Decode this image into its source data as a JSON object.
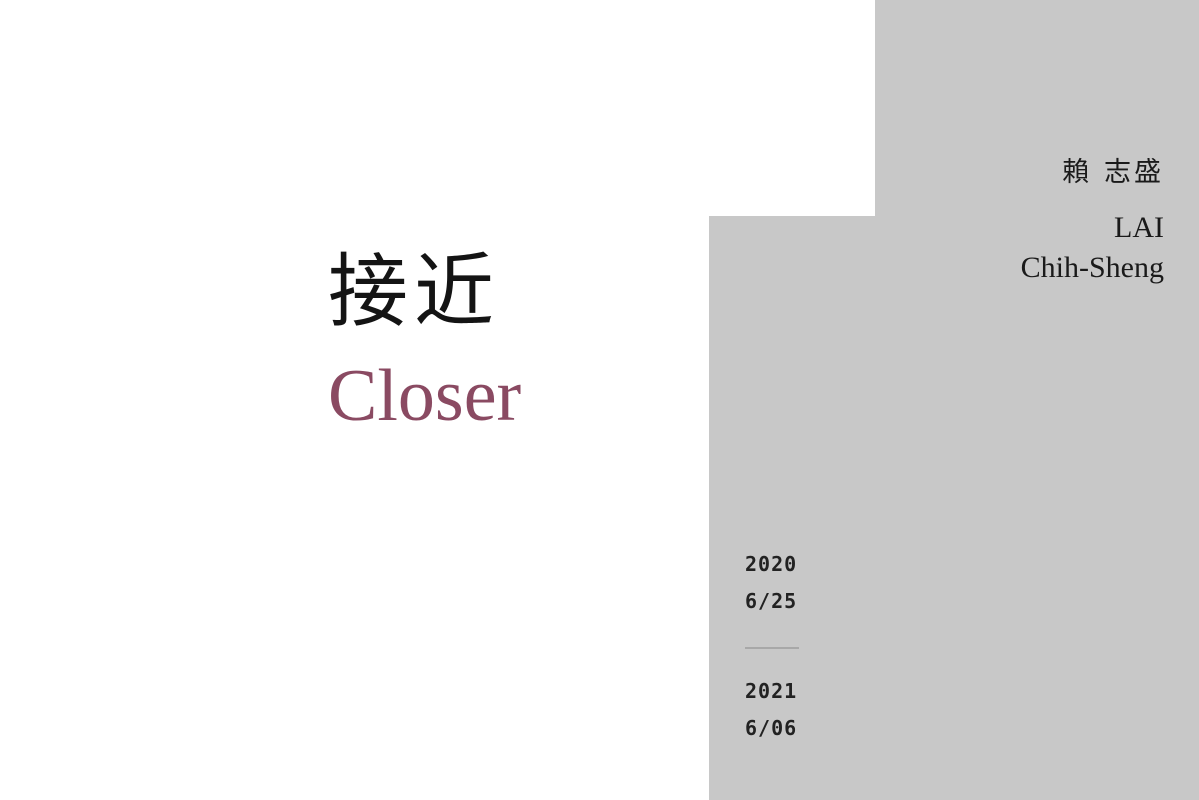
{
  "exhibition": {
    "title_zh": "接近",
    "title_en": "Closer"
  },
  "artist": {
    "name_zh": "賴 志盛",
    "name_en_line1": "LAI",
    "name_en_line2": "Chih-Sheng"
  },
  "dates": {
    "start_year": "2020",
    "start_day": "6/25",
    "end_year": "2021",
    "end_day": "6/06"
  },
  "colors": {
    "background": "#ffffff",
    "panel": "#c8c8c8",
    "title_en": "#8a4a62",
    "text": "#1a1a1a"
  }
}
